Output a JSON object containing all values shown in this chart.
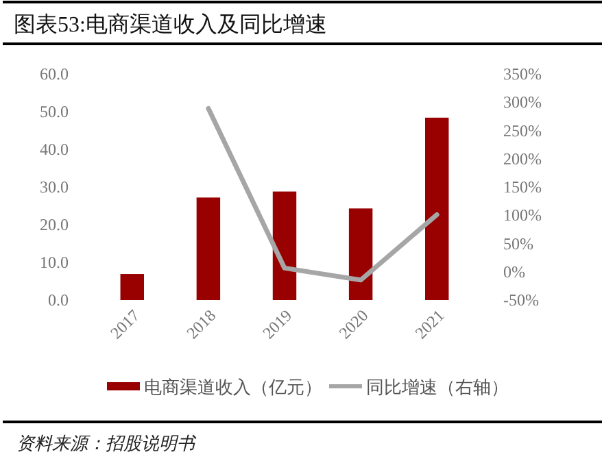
{
  "chart_data": {
    "type": "bar",
    "title": "图表53:电商渠道收入及同比增速",
    "categories": [
      "2017",
      "2018",
      "2019",
      "2020",
      "2021"
    ],
    "series": [
      {
        "name": "电商渠道收入（亿元）",
        "color": "#990000",
        "values": [
          6.9,
          27.2,
          28.8,
          24.3,
          48.4
        ]
      },
      {
        "name": "同比增速（右轴）",
        "type": "line",
        "axis": "y2",
        "color": "#a6a6a6",
        "values": [
          null,
          289,
          6.5,
          -14.6,
          101
        ]
      }
    ],
    "ylim": [
      0,
      60
    ],
    "yticks": [
      {
        "value": 0,
        "label": "0.0"
      },
      {
        "value": 10,
        "label": "10.0"
      },
      {
        "value": 20,
        "label": "20.0"
      },
      {
        "value": 30,
        "label": "30.0"
      },
      {
        "value": 40,
        "label": "40.0"
      },
      {
        "value": 50,
        "label": "50.0"
      },
      {
        "value": 60,
        "label": "60.0"
      }
    ],
    "y2lim": [
      -50,
      350
    ],
    "y2ticks": [
      {
        "value": -50,
        "label": "-50%"
      },
      {
        "value": 0,
        "label": "0%"
      },
      {
        "value": 50,
        "label": "50%"
      },
      {
        "value": 100,
        "label": "100%"
      },
      {
        "value": 150,
        "label": "150%"
      },
      {
        "value": 200,
        "label": "200%"
      },
      {
        "value": 250,
        "label": "250%"
      },
      {
        "value": 300,
        "label": "300%"
      },
      {
        "value": 350,
        "label": "350%"
      }
    ],
    "legend": "bottom",
    "grid": false,
    "marker": "none",
    "line_style": "solid",
    "annotations": [
      "资料来源：招股说明书"
    ]
  }
}
